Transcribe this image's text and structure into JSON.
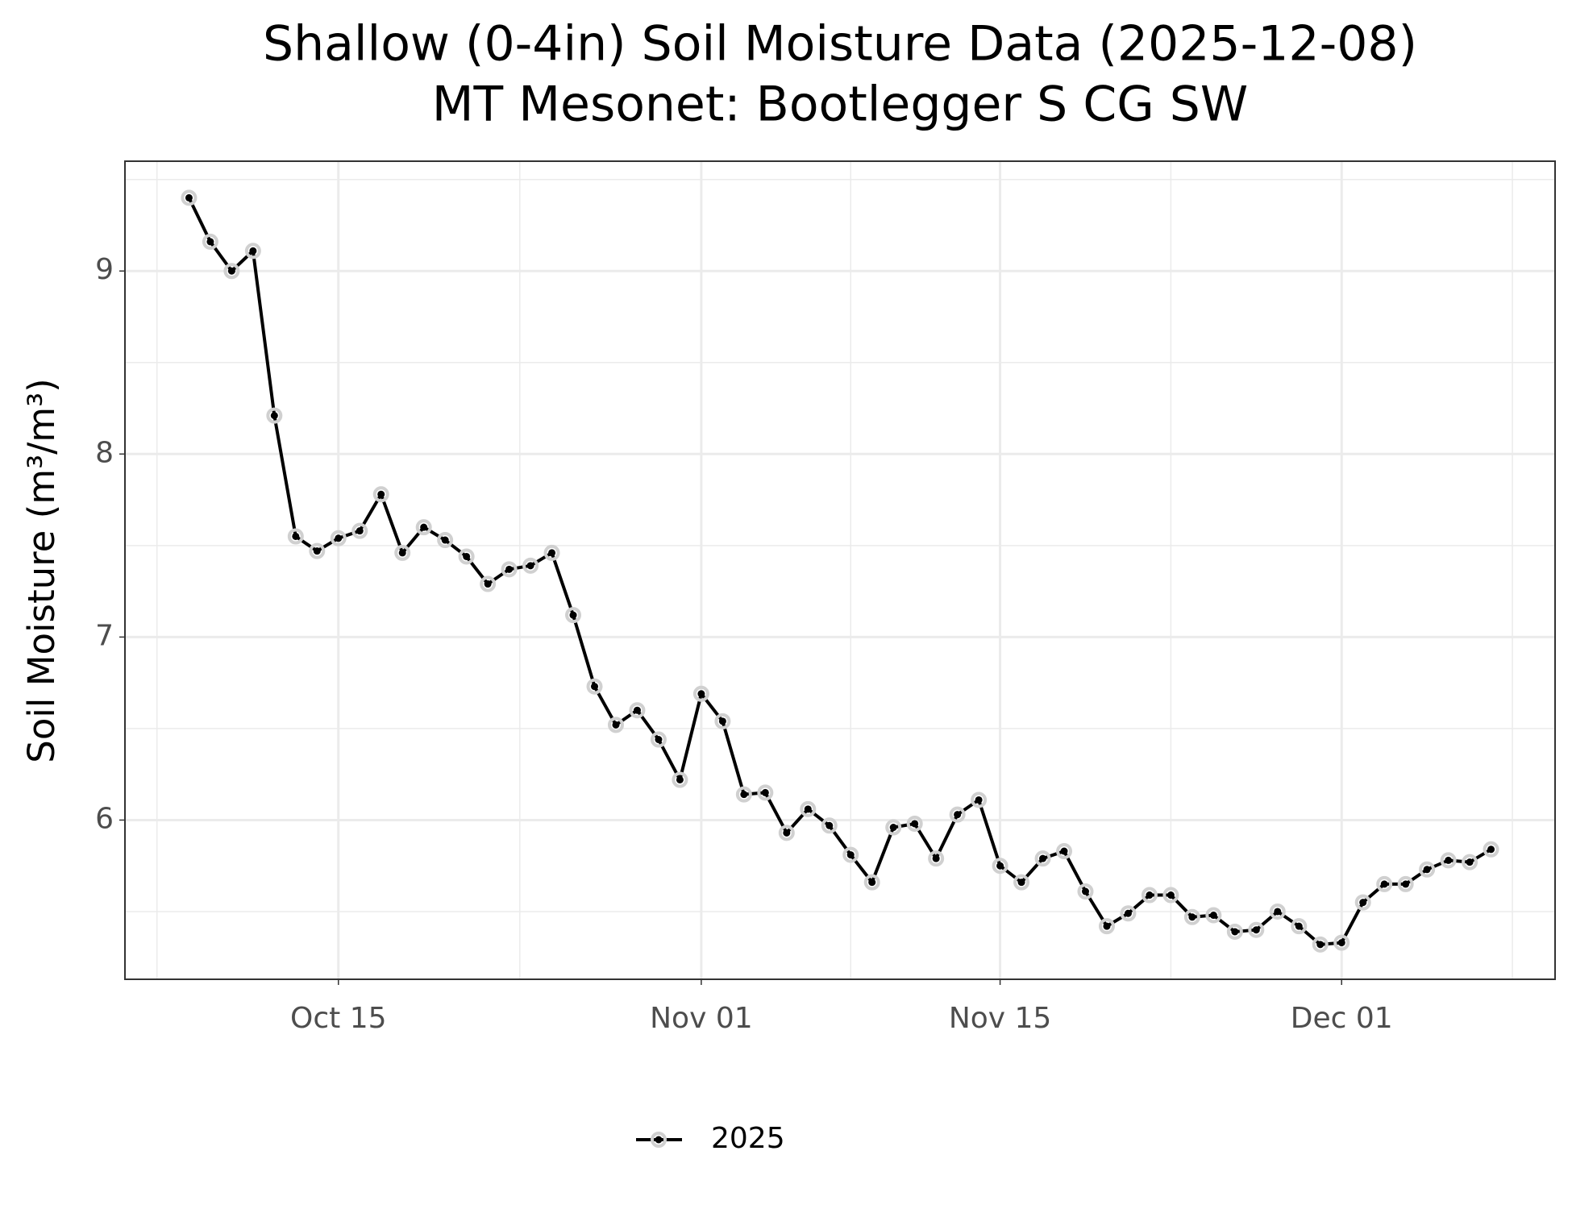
{
  "chart_data": {
    "type": "line",
    "title": "Shallow (0-4in) Soil Moisture Data (2025-12-08)",
    "subtitle": "MT Mesonet: Bootlegger S CG SW",
    "y_label": "Soil Moisture (m³/m³)",
    "x": [
      "2025-10-08",
      "2025-10-09",
      "2025-10-10",
      "2025-10-11",
      "2025-10-12",
      "2025-10-13",
      "2025-10-14",
      "2025-10-15",
      "2025-10-16",
      "2025-10-17",
      "2025-10-18",
      "2025-10-19",
      "2025-10-20",
      "2025-10-21",
      "2025-10-22",
      "2025-10-23",
      "2025-10-24",
      "2025-10-25",
      "2025-10-26",
      "2025-10-27",
      "2025-10-28",
      "2025-10-29",
      "2025-10-30",
      "2025-10-31",
      "2025-11-01",
      "2025-11-02",
      "2025-11-03",
      "2025-11-04",
      "2025-11-05",
      "2025-11-06",
      "2025-11-07",
      "2025-11-08",
      "2025-11-09",
      "2025-11-10",
      "2025-11-11",
      "2025-11-12",
      "2025-11-13",
      "2025-11-14",
      "2025-11-15",
      "2025-11-16",
      "2025-11-17",
      "2025-11-18",
      "2025-11-19",
      "2025-11-20",
      "2025-11-21",
      "2025-11-22",
      "2025-11-23",
      "2025-11-24",
      "2025-11-25",
      "2025-11-26",
      "2025-11-27",
      "2025-11-28",
      "2025-11-29",
      "2025-11-30",
      "2025-12-01",
      "2025-12-02",
      "2025-12-03",
      "2025-12-04",
      "2025-12-05",
      "2025-12-06",
      "2025-12-07",
      "2025-12-08"
    ],
    "series": [
      {
        "name": "2025",
        "color": "#000000",
        "values": [
          9.4,
          9.16,
          9.0,
          9.11,
          8.21,
          7.55,
          7.47,
          7.54,
          7.58,
          7.78,
          7.46,
          7.6,
          7.53,
          7.44,
          7.29,
          7.37,
          7.39,
          7.46,
          7.12,
          6.73,
          6.52,
          6.6,
          6.44,
          6.22,
          6.69,
          6.54,
          6.14,
          6.15,
          5.93,
          6.06,
          5.97,
          5.81,
          5.66,
          5.96,
          5.98,
          5.79,
          6.03,
          6.11,
          5.75,
          5.66,
          5.79,
          5.83,
          5.61,
          5.42,
          5.49,
          5.59,
          5.59,
          5.47,
          5.48,
          5.39,
          5.4,
          5.5,
          5.42,
          5.32,
          5.33,
          5.55,
          5.65,
          5.65,
          5.73,
          5.78,
          5.77,
          5.84
        ]
      }
    ],
    "xlim": [
      "2025-10-05",
      "2025-12-11"
    ],
    "xticks": [
      {
        "value": "2025-10-15",
        "label": "Oct 15"
      },
      {
        "value": "2025-11-01",
        "label": "Nov 01"
      },
      {
        "value": "2025-11-15",
        "label": "Nov 15"
      },
      {
        "value": "2025-12-01",
        "label": "Dec 01"
      }
    ],
    "ylim": [
      5.13,
      9.6
    ],
    "yticks": [
      6,
      7,
      8,
      9
    ],
    "grid": true,
    "legend": "bottom"
  }
}
